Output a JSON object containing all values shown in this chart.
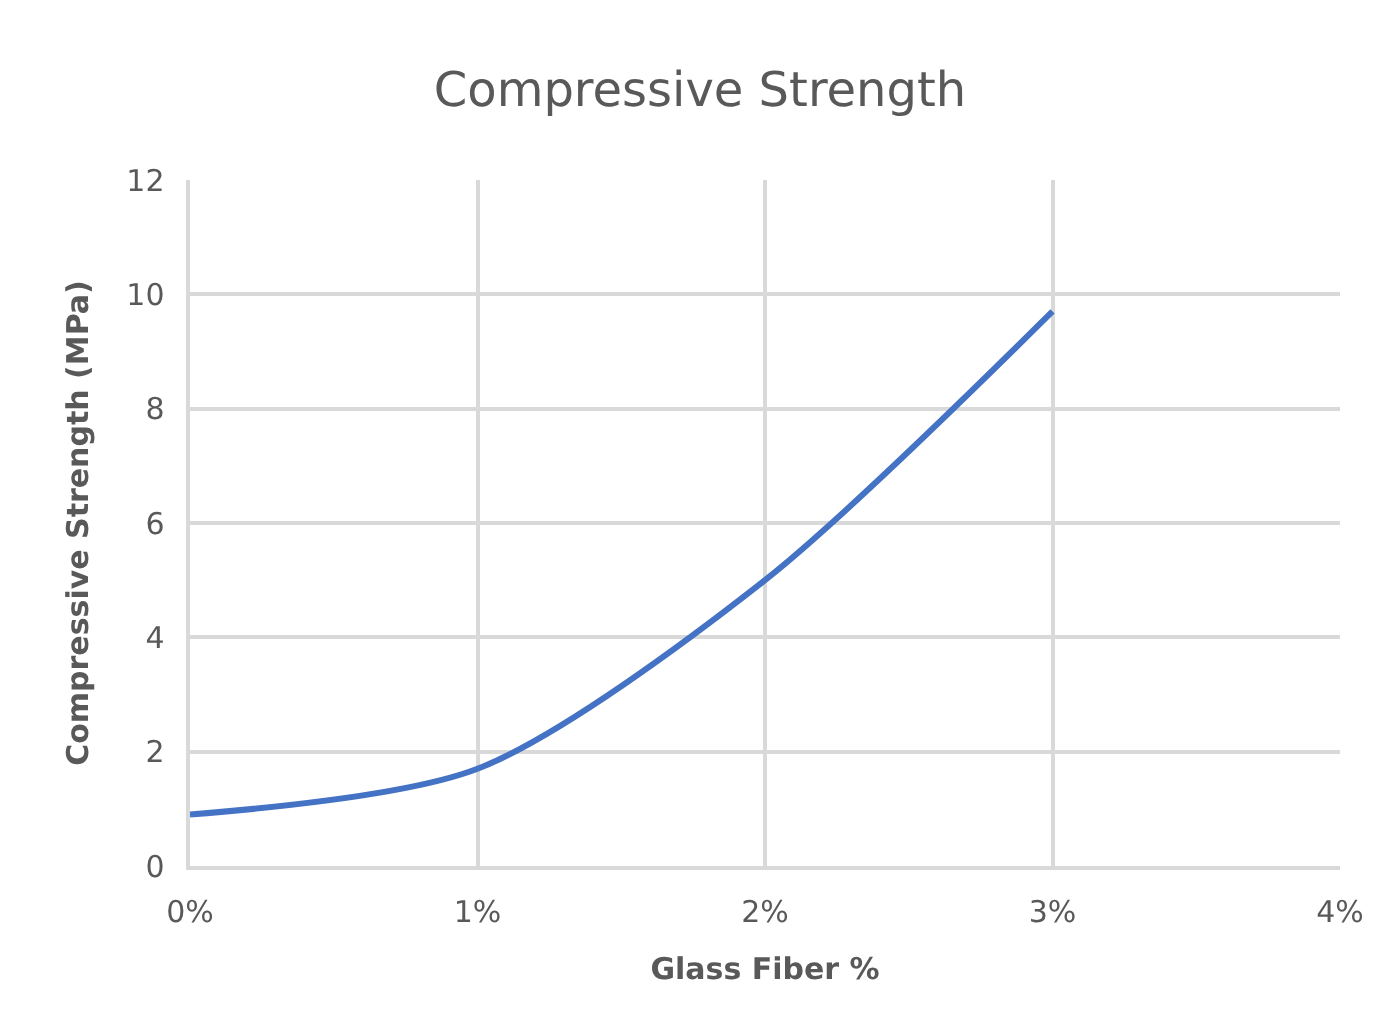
{
  "chart_data": {
    "type": "line",
    "title": "Compressive Strength",
    "xlabel": "Glass Fiber %",
    "ylabel": "Compressive Strength (MPa)",
    "x": [
      0,
      1,
      2,
      3
    ],
    "series": [
      {
        "color": "#4472c4",
        "values": [
          0.9,
          1.7,
          5.0,
          9.7
        ]
      }
    ],
    "xlim": [
      0,
      4
    ],
    "xticks": [
      {
        "value": 0,
        "label": "0%"
      },
      {
        "value": 1,
        "label": "1%"
      },
      {
        "value": 2,
        "label": "2%"
      },
      {
        "value": 3,
        "label": "3%"
      },
      {
        "value": 4,
        "label": "4%"
      }
    ],
    "ylim": [
      0,
      12
    ],
    "yticks": [
      0,
      2,
      4,
      6,
      8,
      10,
      12
    ],
    "grid": true,
    "marker": "none",
    "line_style": "solid"
  }
}
